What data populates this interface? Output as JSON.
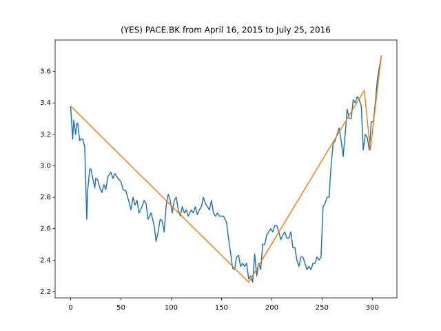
{
  "chart_data": {
    "type": "line",
    "title": "(YES) PACE.BK from April 16, 2015 to July 25, 2016",
    "xlim": [
      -15.45,
      324.45
    ],
    "xticks": [
      0,
      50,
      100,
      150,
      200,
      250,
      300
    ],
    "ylim": [
      2.16,
      3.8
    ],
    "yticks": [
      2.2,
      2.4,
      2.6,
      2.8,
      {
        "value": 3,
        "label": "3.0"
      },
      3.2,
      3.4,
      3.6
    ],
    "series": [
      {
        "color": "#1f77b4",
        "x": [
          0,
          2,
          3,
          5,
          6,
          7,
          9,
          10,
          12,
          14,
          16,
          17,
          19,
          20,
          22,
          24,
          25,
          27,
          29,
          31,
          33,
          35,
          37,
          40,
          42,
          44,
          47,
          50,
          52,
          55,
          58,
          60,
          62,
          64,
          66,
          68,
          71,
          73,
          75,
          77,
          80,
          83,
          85,
          87,
          89,
          91,
          93,
          95,
          97,
          99,
          101,
          103,
          105,
          107,
          109,
          111,
          113,
          115,
          117,
          120,
          122,
          124,
          126,
          128,
          130,
          132,
          134,
          136,
          138,
          140,
          142,
          144,
          146,
          148,
          150,
          152,
          155,
          157,
          159,
          161,
          163,
          165,
          167,
          169,
          171,
          173,
          175,
          177,
          179,
          181,
          183,
          185,
          187,
          189,
          191,
          193,
          195,
          197,
          199,
          201,
          203,
          205,
          207,
          209,
          211,
          213,
          215,
          217,
          219,
          221,
          223,
          225,
          227,
          229,
          231,
          233,
          235,
          237,
          239,
          241,
          243,
          245,
          247,
          249,
          251,
          253,
          255,
          257,
          259,
          261,
          263,
          265,
          267,
          269,
          271,
          273,
          275,
          277,
          279,
          281,
          283,
          285,
          287,
          289,
          291,
          293,
          295,
          297,
          299,
          301,
          303,
          305,
          309
        ],
        "values": [
          3.38,
          3.17,
          3.29,
          3.2,
          3.27,
          3.27,
          3.16,
          3.17,
          3.17,
          3.12,
          2.66,
          2.85,
          2.98,
          2.98,
          2.92,
          2.86,
          2.92,
          2.91,
          2.86,
          2.83,
          2.88,
          2.85,
          2.93,
          2.96,
          2.92,
          2.95,
          2.92,
          2.9,
          2.85,
          2.84,
          2.77,
          2.72,
          2.8,
          2.75,
          2.78,
          2.7,
          2.74,
          2.78,
          2.76,
          2.66,
          2.7,
          2.62,
          2.52,
          2.58,
          2.66,
          2.65,
          2.58,
          2.75,
          2.82,
          2.78,
          2.7,
          2.78,
          2.8,
          2.72,
          2.68,
          2.74,
          2.7,
          2.72,
          2.68,
          2.72,
          2.7,
          2.74,
          2.69,
          2.72,
          2.74,
          2.8,
          2.76,
          2.74,
          2.72,
          2.78,
          2.7,
          2.68,
          2.7,
          2.68,
          2.68,
          2.68,
          2.64,
          2.54,
          2.45,
          2.35,
          2.34,
          2.42,
          2.43,
          2.36,
          2.38,
          2.36,
          2.38,
          2.28,
          2.3,
          2.26,
          2.44,
          2.3,
          2.38,
          2.34,
          2.5,
          2.5,
          2.56,
          2.58,
          2.6,
          2.58,
          2.62,
          2.62,
          2.58,
          2.53,
          2.56,
          2.58,
          2.54,
          2.54,
          2.58,
          2.48,
          2.48,
          2.4,
          2.36,
          2.42,
          2.42,
          2.38,
          2.34,
          2.36,
          2.34,
          2.38,
          2.38,
          2.42,
          2.4,
          2.42,
          2.74,
          2.76,
          2.8,
          2.8,
          3.0,
          3.14,
          3.16,
          3.2,
          3.24,
          3.16,
          3.06,
          3.2,
          3.36,
          3.3,
          3.3,
          3.42,
          3.4,
          3.44,
          3.42,
          3.38,
          3.1,
          3.2,
          3.18,
          3.1,
          3.28,
          3.28,
          3.4,
          3.55,
          3.7
        ]
      },
      {
        "color": "#ff7f0e",
        "x": [
          0,
          177,
          292,
          298,
          309
        ],
        "values": [
          3.38,
          2.26,
          3.48,
          3.1,
          3.7
        ]
      }
    ]
  }
}
